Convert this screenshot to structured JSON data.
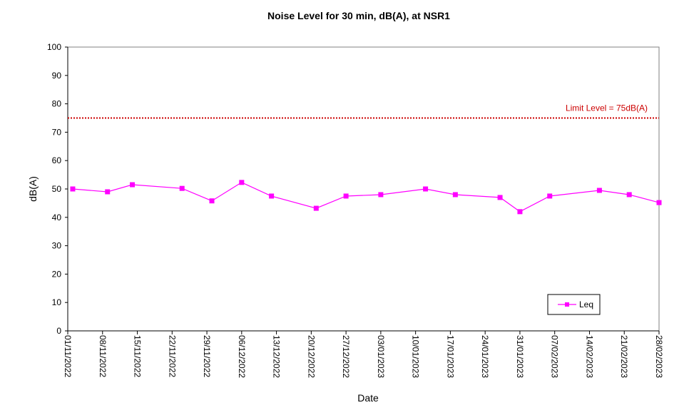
{
  "chart_data": {
    "type": "line",
    "title": "Noise Level for 30 min, dB(A), at NSR1",
    "xlabel": "Date",
    "ylabel": "dB(A)",
    "ylim": [
      0,
      100
    ],
    "yticks": [
      0,
      10,
      20,
      30,
      40,
      50,
      60,
      70,
      80,
      90,
      100
    ],
    "xlim": [
      "2022-11-01",
      "2023-02-28"
    ],
    "xtick_labels": [
      "01/11/2022",
      "08/11/2022",
      "15/11/2022",
      "22/11/2022",
      "29/11/2022",
      "06/12/2022",
      "13/12/2022",
      "20/12/2022",
      "27/12/2022",
      "03/01/2023",
      "10/01/2023",
      "17/01/2023",
      "24/01/2023",
      "31/01/2023",
      "07/02/2023",
      "14/02/2023",
      "21/02/2023",
      "28/02/2023"
    ],
    "xtick_dates": [
      "2022-11-01",
      "2022-11-08",
      "2022-11-15",
      "2022-11-22",
      "2022-11-29",
      "2022-12-06",
      "2022-12-13",
      "2022-12-20",
      "2022-12-27",
      "2023-01-03",
      "2023-01-10",
      "2023-01-17",
      "2023-01-24",
      "2023-01-31",
      "2023-02-07",
      "2023-02-14",
      "2023-02-21",
      "2023-02-28"
    ],
    "grid": false,
    "legend_position": "bottom-right",
    "series": [
      {
        "name": "Leq",
        "color": "#ff00ff",
        "marker": "square",
        "x": [
          "2022-11-02",
          "2022-11-09",
          "2022-11-14",
          "2022-11-24",
          "2022-11-30",
          "2022-12-06",
          "2022-12-12",
          "2022-12-21",
          "2022-12-27",
          "2023-01-03",
          "2023-01-12",
          "2023-01-18",
          "2023-01-27",
          "2023-01-31",
          "2023-02-06",
          "2023-02-16",
          "2023-02-22",
          "2023-02-28"
        ],
        "values": [
          50,
          49,
          51.5,
          50.2,
          45.8,
          52.3,
          47.5,
          43.2,
          47.5,
          48,
          50,
          48,
          47,
          42,
          47.5,
          49.5,
          48,
          45.2
        ]
      }
    ],
    "reference_lines": [
      {
        "label": "Limit Level  = 75dB(A)",
        "value": 75,
        "color": "#cc0000",
        "style": "dotted"
      }
    ]
  }
}
